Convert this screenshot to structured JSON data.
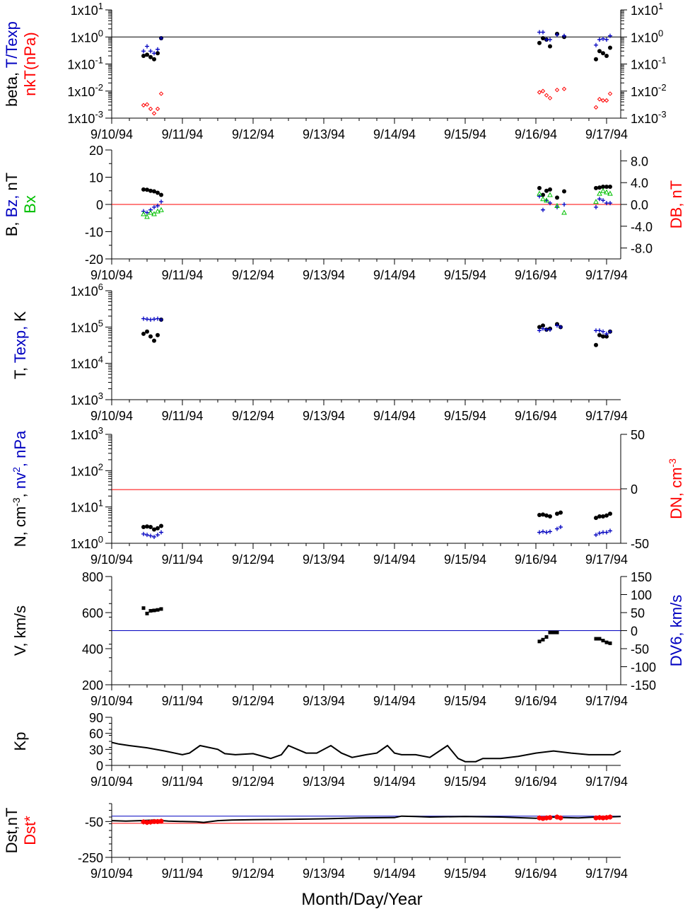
{
  "xlabel": "Month/Day/Year",
  "xticks": [
    "9/10/94",
    "9/11/94",
    "9/12/94",
    "9/13/94",
    "9/14/94",
    "9/15/94",
    "9/16/94",
    "9/17/94"
  ],
  "colors": {
    "black": "#000000",
    "blue": "#0000c0",
    "red": "#ff0000",
    "green": "#00c000"
  },
  "chart_data": [
    {
      "type": "scatter",
      "scale": "log",
      "ylim": [
        0.001,
        10
      ],
      "left_ticks": [
        "1x10^1",
        "1x10^0",
        "1x10^-1",
        "1x10^-2",
        "1x10^-3"
      ],
      "right_ticks": [
        "1x10^1",
        "1x10^0",
        "1x10^-1",
        "1x10^-2",
        "1x10^-3"
      ],
      "ylabel_parts": [
        {
          "text": "beta, ",
          "color": "#000000"
        },
        {
          "text": "T/Texp",
          "color": "#0000c0"
        }
      ],
      "ylabel2_parts": [
        {
          "text": "nkT(nPa)",
          "color": "#ff0000"
        }
      ],
      "hlines": [
        {
          "y": 1,
          "color": "#000000"
        }
      ],
      "series": [
        {
          "marker": "dot",
          "color": "#000000",
          "x": [
            0.45,
            0.5,
            0.55,
            0.6,
            0.65,
            0.7,
            6.05,
            6.1,
            6.15,
            6.2,
            6.3,
            6.4,
            6.85,
            6.9,
            6.95,
            7.0,
            7.05
          ],
          "y": [
            0.2,
            0.22,
            0.18,
            0.15,
            0.25,
            0.9,
            0.6,
            0.9,
            0.8,
            0.45,
            1.3,
            1.0,
            0.15,
            0.3,
            0.25,
            0.2,
            0.4
          ]
        },
        {
          "marker": "plus",
          "color": "#0000c0",
          "x": [
            0.45,
            0.5,
            0.55,
            0.6,
            0.65,
            0.7,
            6.05,
            6.1,
            6.15,
            6.2,
            6.3,
            6.4,
            6.85,
            6.9,
            6.95,
            7.0,
            7.05
          ],
          "y": [
            0.3,
            0.45,
            0.3,
            0.25,
            0.35,
            0.9,
            1.5,
            1.5,
            0.8,
            0.8,
            1.2,
            1.1,
            0.5,
            0.8,
            0.85,
            0.8,
            1.1
          ]
        },
        {
          "marker": "diamond",
          "color": "#ff0000",
          "x": [
            0.45,
            0.5,
            0.55,
            0.6,
            0.65,
            0.7,
            6.05,
            6.1,
            6.15,
            6.2,
            6.3,
            6.4,
            6.85,
            6.9,
            6.95,
            7.0,
            7.05
          ],
          "y": [
            0.003,
            0.0032,
            0.0022,
            0.0015,
            0.0022,
            0.008,
            0.009,
            0.01,
            0.007,
            0.0055,
            0.011,
            0.012,
            0.0025,
            0.005,
            0.0045,
            0.0045,
            0.008
          ]
        }
      ]
    },
    {
      "type": "scatter",
      "scale": "linear",
      "ylim": [
        -20,
        20
      ],
      "y2lim": [
        -10,
        10
      ],
      "left_ticks": [
        {
          "v": 20,
          "t": "20"
        },
        {
          "v": 10,
          "t": "10"
        },
        {
          "v": 0,
          "t": "0"
        },
        {
          "v": -10,
          "t": "-10"
        },
        {
          "v": -20,
          "t": "-20"
        }
      ],
      "right_ticks": [
        {
          "v": 8,
          "t": "8.0"
        },
        {
          "v": 4,
          "t": "4.0"
        },
        {
          "v": 0,
          "t": "0.0"
        },
        {
          "v": -4,
          "t": "-4.0"
        },
        {
          "v": -8,
          "t": "-8.0"
        }
      ],
      "ylabel_parts": [
        {
          "text": "B, ",
          "color": "#000000"
        },
        {
          "text": "Bz, ",
          "color": "#0000c0"
        },
        {
          "text": "nT",
          "color": "#000000"
        }
      ],
      "ylabel2_parts": [
        {
          "text": "Bx",
          "color": "#00c000"
        }
      ],
      "rlabel_parts": [
        {
          "text": "DB, nT",
          "color": "#ff0000"
        }
      ],
      "hlines": [
        {
          "y": 0,
          "color": "#ff0000"
        }
      ],
      "series": [
        {
          "marker": "dot",
          "color": "#000000",
          "x": [
            0.45,
            0.5,
            0.55,
            0.6,
            0.65,
            0.7,
            6.05,
            6.1,
            6.15,
            6.2,
            6.3,
            6.4,
            6.85,
            6.9,
            6.95,
            7.0,
            7.05
          ],
          "y": [
            5.5,
            5.4,
            5.0,
            4.8,
            4.3,
            3.5,
            6.0,
            3.5,
            5.0,
            5.5,
            2.5,
            4.8,
            6.0,
            6.2,
            6.5,
            6.5,
            6.5
          ]
        },
        {
          "marker": "plus",
          "color": "#0000c0",
          "x": [
            0.45,
            0.5,
            0.55,
            0.6,
            0.65,
            0.7,
            6.05,
            6.1,
            6.15,
            6.2,
            6.3,
            6.4,
            6.85,
            6.9,
            6.95,
            7.0,
            7.05
          ],
          "y": [
            -2.5,
            -3.0,
            -2.0,
            -1.0,
            -0.5,
            1.0,
            3.0,
            -2.0,
            1.5,
            0.5,
            -1.0,
            0.0,
            -1.0,
            2.0,
            1.5,
            0.5,
            0.5
          ]
        },
        {
          "marker": "triangle",
          "color": "#00c000",
          "x": [
            0.45,
            0.5,
            0.55,
            0.6,
            0.65,
            0.7,
            6.05,
            6.1,
            6.15,
            6.2,
            6.3,
            6.4,
            6.85,
            6.9,
            6.95,
            7.0,
            7.05
          ],
          "y": [
            -3.5,
            -4.5,
            -3.0,
            -3.5,
            -2.5,
            -2.0,
            4.0,
            2.0,
            1.5,
            3.5,
            -0.5,
            -3.0,
            1.0,
            4.0,
            5.0,
            4.5,
            4.0
          ]
        }
      ]
    },
    {
      "type": "scatter",
      "scale": "log",
      "ylim": [
        1000,
        1000000
      ],
      "left_ticks": [
        "1x10^6",
        "1x10^5",
        "1x10^4",
        "1x10^3"
      ],
      "ylabel_parts": [
        {
          "text": "T, ",
          "color": "#000000"
        },
        {
          "text": "Texp, ",
          "color": "#0000c0"
        },
        {
          "text": "K",
          "color": "#000000"
        }
      ],
      "hlines": [],
      "series": [
        {
          "marker": "dot",
          "color": "#000000",
          "x": [
            0.45,
            0.5,
            0.55,
            0.6,
            0.65,
            0.7,
            6.05,
            6.1,
            6.15,
            6.2,
            6.3,
            6.35,
            6.85,
            6.9,
            6.95,
            7.0,
            7.05
          ],
          "y": [
            65000,
            75000,
            55000,
            42000,
            60000,
            160000,
            100000,
            110000,
            85000,
            90000,
            120000,
            100000,
            32000,
            60000,
            55000,
            55000,
            75000
          ]
        },
        {
          "marker": "plus",
          "color": "#0000c0",
          "x": [
            0.45,
            0.5,
            0.55,
            0.6,
            0.65,
            0.7,
            6.05,
            6.1,
            6.15,
            6.2,
            6.3,
            6.35,
            6.85,
            6.9,
            6.95,
            7.0,
            7.05
          ],
          "y": [
            170000,
            165000,
            160000,
            165000,
            170000,
            160000,
            80000,
            90000,
            85000,
            85000,
            110000,
            100000,
            80000,
            80000,
            75000,
            65000,
            75000
          ]
        }
      ]
    },
    {
      "type": "scatter",
      "scale": "log",
      "ylim": [
        1,
        1000
      ],
      "y2lim": [
        -50,
        50
      ],
      "left_ticks": [
        "1x10^3",
        "1x10^2",
        "1x10^1",
        "1x10^0"
      ],
      "right_ticks": [
        {
          "v": 50,
          "t": "50"
        },
        {
          "v": 0,
          "t": "0"
        },
        {
          "v": -50,
          "t": "-50"
        }
      ],
      "ylabel_parts": [
        {
          "text": "N, cm",
          "color": "#000000"
        },
        {
          "text": "-3",
          "color": "#000000",
          "sup": true
        },
        {
          "text": ", ",
          "color": "#000000"
        },
        {
          "text": "nv",
          "color": "#0000c0"
        },
        {
          "text": "2",
          "color": "#0000c0",
          "sup": true
        },
        {
          "text": ", nPa",
          "color": "#0000c0"
        }
      ],
      "rlabel_parts": [
        {
          "text": "DN, cm",
          "color": "#ff0000"
        },
        {
          "text": "-3",
          "color": "#ff0000",
          "sup": true
        }
      ],
      "hlines": [
        {
          "y": 30,
          "color": "#ff0000"
        }
      ],
      "series": [
        {
          "marker": "dot",
          "color": "#000000",
          "x": [
            0.45,
            0.5,
            0.55,
            0.6,
            0.65,
            0.7,
            6.05,
            6.1,
            6.15,
            6.2,
            6.3,
            6.35,
            6.85,
            6.9,
            6.95,
            7.0,
            7.05
          ],
          "y": [
            2.8,
            2.9,
            2.8,
            2.4,
            2.6,
            3.0,
            6.0,
            6.2,
            5.8,
            5.5,
            6.5,
            7.0,
            5.0,
            5.5,
            5.5,
            5.8,
            6.5
          ]
        },
        {
          "marker": "plus",
          "color": "#0000c0",
          "x": [
            0.45,
            0.5,
            0.55,
            0.6,
            0.65,
            0.7,
            6.05,
            6.1,
            6.15,
            6.2,
            6.3,
            6.35,
            6.85,
            6.9,
            6.95,
            7.0,
            7.05
          ],
          "y": [
            1.8,
            1.7,
            1.6,
            1.5,
            1.7,
            2.0,
            2.0,
            2.1,
            2.0,
            2.1,
            2.5,
            2.8,
            1.7,
            1.9,
            2.0,
            2.0,
            2.2
          ]
        }
      ]
    },
    {
      "type": "scatter",
      "scale": "linear",
      "ylim": [
        200,
        800
      ],
      "y2lim": [
        -150,
        150
      ],
      "left_ticks": [
        {
          "v": 800,
          "t": "800"
        },
        {
          "v": 600,
          "t": "600"
        },
        {
          "v": 400,
          "t": "400"
        },
        {
          "v": 200,
          "t": "200"
        }
      ],
      "right_ticks": [
        {
          "v": 150,
          "t": "150"
        },
        {
          "v": 100,
          "t": "100"
        },
        {
          "v": 50,
          "t": "50"
        },
        {
          "v": 0,
          "t": "0"
        },
        {
          "v": -50,
          "t": "-50"
        },
        {
          "v": -100,
          "t": "-100"
        },
        {
          "v": -150,
          "t": "-150"
        }
      ],
      "ylabel_parts": [
        {
          "text": "V, km/s",
          "color": "#000000"
        }
      ],
      "rlabel_parts": [
        {
          "text": "DV6, km/s",
          "color": "#0000c0"
        }
      ],
      "hlines": [
        {
          "y": 500,
          "color": "#0000c0"
        }
      ],
      "series": [
        {
          "marker": "square",
          "color": "#000000",
          "x": [
            0.45,
            0.5,
            0.55,
            0.6,
            0.65,
            0.7,
            6.05,
            6.1,
            6.15,
            6.2,
            6.25,
            6.3,
            6.85,
            6.9,
            6.95,
            7.0,
            7.05
          ],
          "y": [
            625,
            595,
            610,
            612,
            615,
            620,
            440,
            450,
            465,
            490,
            490,
            490,
            455,
            455,
            445,
            435,
            430
          ]
        }
      ]
    },
    {
      "type": "line",
      "scale": "linear",
      "ylim": [
        0,
        90
      ],
      "left_ticks": [
        {
          "v": 90,
          "t": "90"
        },
        {
          "v": 60,
          "t": "60"
        },
        {
          "v": 30,
          "t": "30"
        },
        {
          "v": 0,
          "t": "0"
        }
      ],
      "ylabel_parts": [
        {
          "text": "Kp",
          "color": "#000000"
        }
      ],
      "hlines": [],
      "series": [
        {
          "color": "#000000",
          "x": [
            0,
            0.1,
            0.25,
            0.5,
            0.75,
            1.0,
            1.1,
            1.25,
            1.5,
            1.6,
            1.75,
            2.0,
            2.25,
            2.4,
            2.5,
            2.75,
            2.9,
            3.1,
            3.25,
            3.4,
            3.6,
            3.75,
            3.9,
            4.0,
            4.1,
            4.3,
            4.5,
            4.75,
            4.9,
            5.0,
            5.15,
            5.25,
            5.5,
            5.75,
            6.0,
            6.25,
            6.5,
            6.75,
            7.0,
            7.1,
            7.2
          ],
          "y": [
            43,
            40,
            37,
            33,
            27,
            20,
            23,
            37,
            30,
            22,
            20,
            22,
            13,
            20,
            37,
            23,
            23,
            37,
            23,
            15,
            20,
            23,
            37,
            23,
            20,
            20,
            15,
            37,
            13,
            7,
            7,
            13,
            13,
            17,
            23,
            27,
            23,
            20,
            20,
            20,
            27
          ]
        }
      ]
    },
    {
      "type": "scatter",
      "scale": "linear",
      "ylim": [
        -250,
        50
      ],
      "left_ticks": [
        {
          "v": -50,
          "t": "-50"
        },
        {
          "v": -250,
          "t": "-250"
        }
      ],
      "ylabel_parts": [
        {
          "text": "Dst,nT",
          "color": "#000000"
        }
      ],
      "ylabel2_parts": [
        {
          "text": "Dst*",
          "color": "#ff0000"
        }
      ],
      "hlines": [
        {
          "y": -20,
          "color": "#0000c0"
        },
        {
          "y": -60,
          "color": "#ff0000"
        }
      ],
      "series": [
        {
          "marker": "line",
          "color": "#000000",
          "x": [
            0,
            0.2,
            0.4,
            0.6,
            0.8,
            1.0,
            1.2,
            1.3,
            1.5,
            1.7,
            2.0,
            2.5,
            3.0,
            3.5,
            4.0,
            4.1,
            4.3,
            4.5,
            5.0,
            5.5,
            6.0,
            6.2,
            6.4,
            6.6,
            6.8,
            7.0,
            7.2
          ],
          "y": [
            -45,
            -48,
            -45,
            -42,
            -48,
            -50,
            -52,
            -55,
            -45,
            -42,
            -40,
            -38,
            -35,
            -30,
            -28,
            -20,
            -22,
            -25,
            -22,
            -25,
            -32,
            -25,
            -28,
            -30,
            -26,
            -25,
            -22
          ]
        },
        {
          "marker": "star",
          "color": "#ff0000",
          "x": [
            0.45,
            0.5,
            0.55,
            0.6,
            0.65,
            0.7,
            6.05,
            6.1,
            6.15,
            6.2,
            6.3,
            6.35,
            6.85,
            6.9,
            6.95,
            7.0,
            7.05
          ],
          "y": [
            -52,
            -55,
            -53,
            -50,
            -50,
            -48,
            -30,
            -33,
            -30,
            -28,
            -25,
            -30,
            -30,
            -28,
            -30,
            -28,
            -25
          ]
        }
      ]
    }
  ]
}
